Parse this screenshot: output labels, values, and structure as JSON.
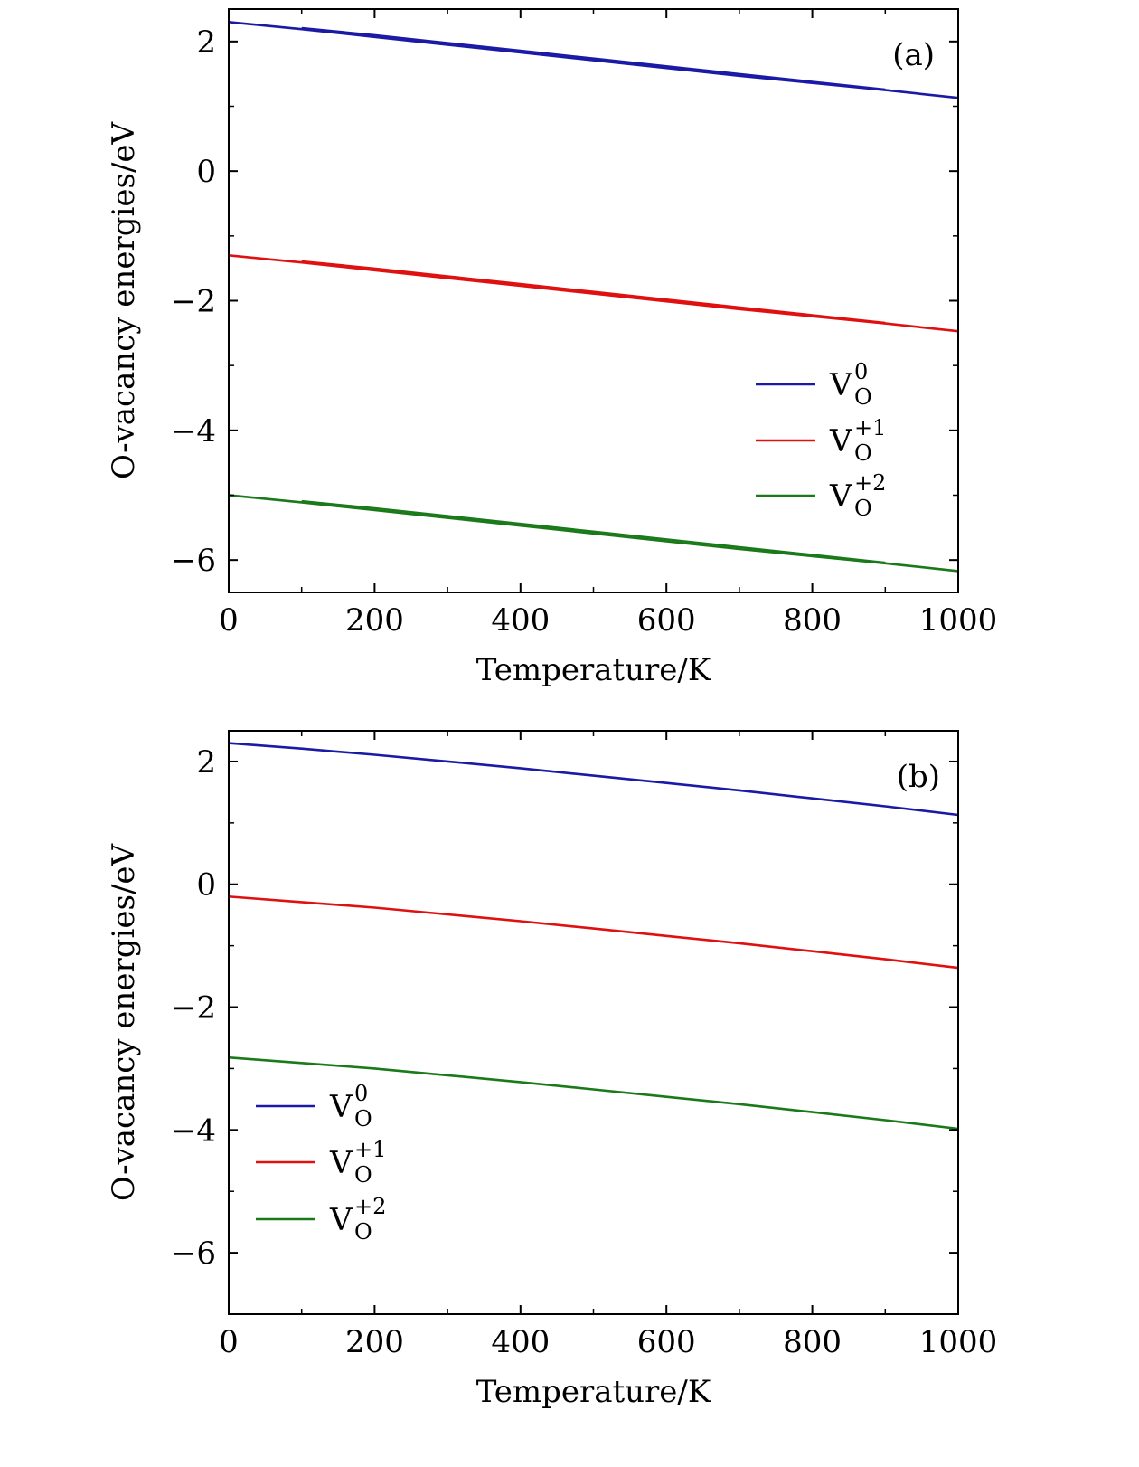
{
  "chart_data": [
    {
      "type": "line",
      "panel_label": "(a)",
      "xlabel": "Temperature/K",
      "ylabel": "O-vacancy energies/eV",
      "xlim": [
        0,
        1000
      ],
      "ylim": [
        -6.5,
        2.5
      ],
      "xticks": [
        0,
        200,
        400,
        600,
        800,
        1000
      ],
      "xtick_labels": [
        "0",
        "200",
        "400",
        "600",
        "800",
        "1000"
      ],
      "yticks": [
        -6,
        -4,
        -2,
        0,
        2
      ],
      "ytick_labels": [
        "−6",
        "−4",
        "−2",
        "0",
        "2"
      ],
      "legend_position": "center-right",
      "series": [
        {
          "name": "V",
          "sup": "0",
          "sub": "O",
          "color": "#1a1aa6",
          "x": [
            0,
            100,
            200,
            300,
            400,
            500,
            600,
            700,
            800,
            900,
            1000
          ],
          "y": [
            2.3,
            2.19,
            2.07,
            1.95,
            1.83,
            1.71,
            1.59,
            1.47,
            1.36,
            1.25,
            1.13
          ],
          "x2": [
            100,
            200,
            300,
            400,
            500,
            600,
            700,
            800,
            900
          ],
          "y2": [
            2.21,
            2.1,
            1.98,
            1.86,
            1.74,
            1.62,
            1.5,
            1.38,
            1.26
          ]
        },
        {
          "name": "V",
          "sup": "+1",
          "sub": "O",
          "color": "#e01010",
          "x": [
            0,
            100,
            200,
            300,
            400,
            500,
            600,
            700,
            800,
            900,
            1000
          ],
          "y": [
            -1.3,
            -1.41,
            -1.53,
            -1.65,
            -1.77,
            -1.89,
            -2.01,
            -2.13,
            -2.24,
            -2.35,
            -2.47
          ],
          "x2": [
            100,
            200,
            300,
            400,
            500,
            600,
            700,
            800,
            900
          ],
          "y2": [
            -1.39,
            -1.5,
            -1.62,
            -1.74,
            -1.86,
            -1.98,
            -2.1,
            -2.22,
            -2.34
          ]
        },
        {
          "name": "V",
          "sup": "+2",
          "sub": "O",
          "color": "#1a7a1a",
          "x": [
            0,
            100,
            200,
            300,
            400,
            500,
            600,
            700,
            800,
            900,
            1000
          ],
          "y": [
            -5.0,
            -5.11,
            -5.23,
            -5.35,
            -5.47,
            -5.59,
            -5.71,
            -5.83,
            -5.94,
            -6.05,
            -6.17
          ],
          "x2": [
            100,
            200,
            300,
            400,
            500,
            600,
            700,
            800,
            900
          ],
          "y2": [
            -5.09,
            -5.2,
            -5.32,
            -5.44,
            -5.56,
            -5.68,
            -5.8,
            -5.92,
            -6.04
          ]
        }
      ]
    },
    {
      "type": "line",
      "panel_label": "(b)",
      "xlabel": "Temperature/K",
      "ylabel": "O-vacancy energies/eV",
      "xlim": [
        0,
        1000
      ],
      "ylim": [
        -7,
        2.5
      ],
      "xticks": [
        0,
        200,
        400,
        600,
        800,
        1000
      ],
      "xtick_labels": [
        "0",
        "200",
        "400",
        "600",
        "800",
        "1000"
      ],
      "yticks": [
        -6,
        -4,
        -2,
        0,
        2
      ],
      "ytick_labels": [
        "−6",
        "−4",
        "−2",
        "0",
        "2"
      ],
      "legend_position": "lower-left",
      "series": [
        {
          "name": "V",
          "sup": "0",
          "sub": "O",
          "color": "#1a1aa6",
          "x": [
            0,
            100,
            200,
            300,
            400,
            500,
            600,
            700,
            800,
            900,
            1000
          ],
          "y": [
            2.3,
            2.21,
            2.11,
            2.0,
            1.89,
            1.77,
            1.65,
            1.53,
            1.4,
            1.27,
            1.13
          ]
        },
        {
          "name": "V",
          "sup": "+1",
          "sub": "O",
          "color": "#e01010",
          "x": [
            0,
            100,
            200,
            300,
            400,
            500,
            600,
            700,
            800,
            900,
            1000
          ],
          "y": [
            -0.2,
            -0.29,
            -0.38,
            -0.49,
            -0.6,
            -0.72,
            -0.84,
            -0.96,
            -1.09,
            -1.22,
            -1.36
          ]
        },
        {
          "name": "V",
          "sup": "+2",
          "sub": "O",
          "color": "#1a7a1a",
          "x": [
            0,
            100,
            200,
            300,
            400,
            500,
            600,
            700,
            800,
            900,
            1000
          ],
          "y": [
            -2.82,
            -2.91,
            -3.0,
            -3.11,
            -3.22,
            -3.34,
            -3.46,
            -3.58,
            -3.71,
            -3.84,
            -3.98
          ]
        }
      ]
    }
  ]
}
